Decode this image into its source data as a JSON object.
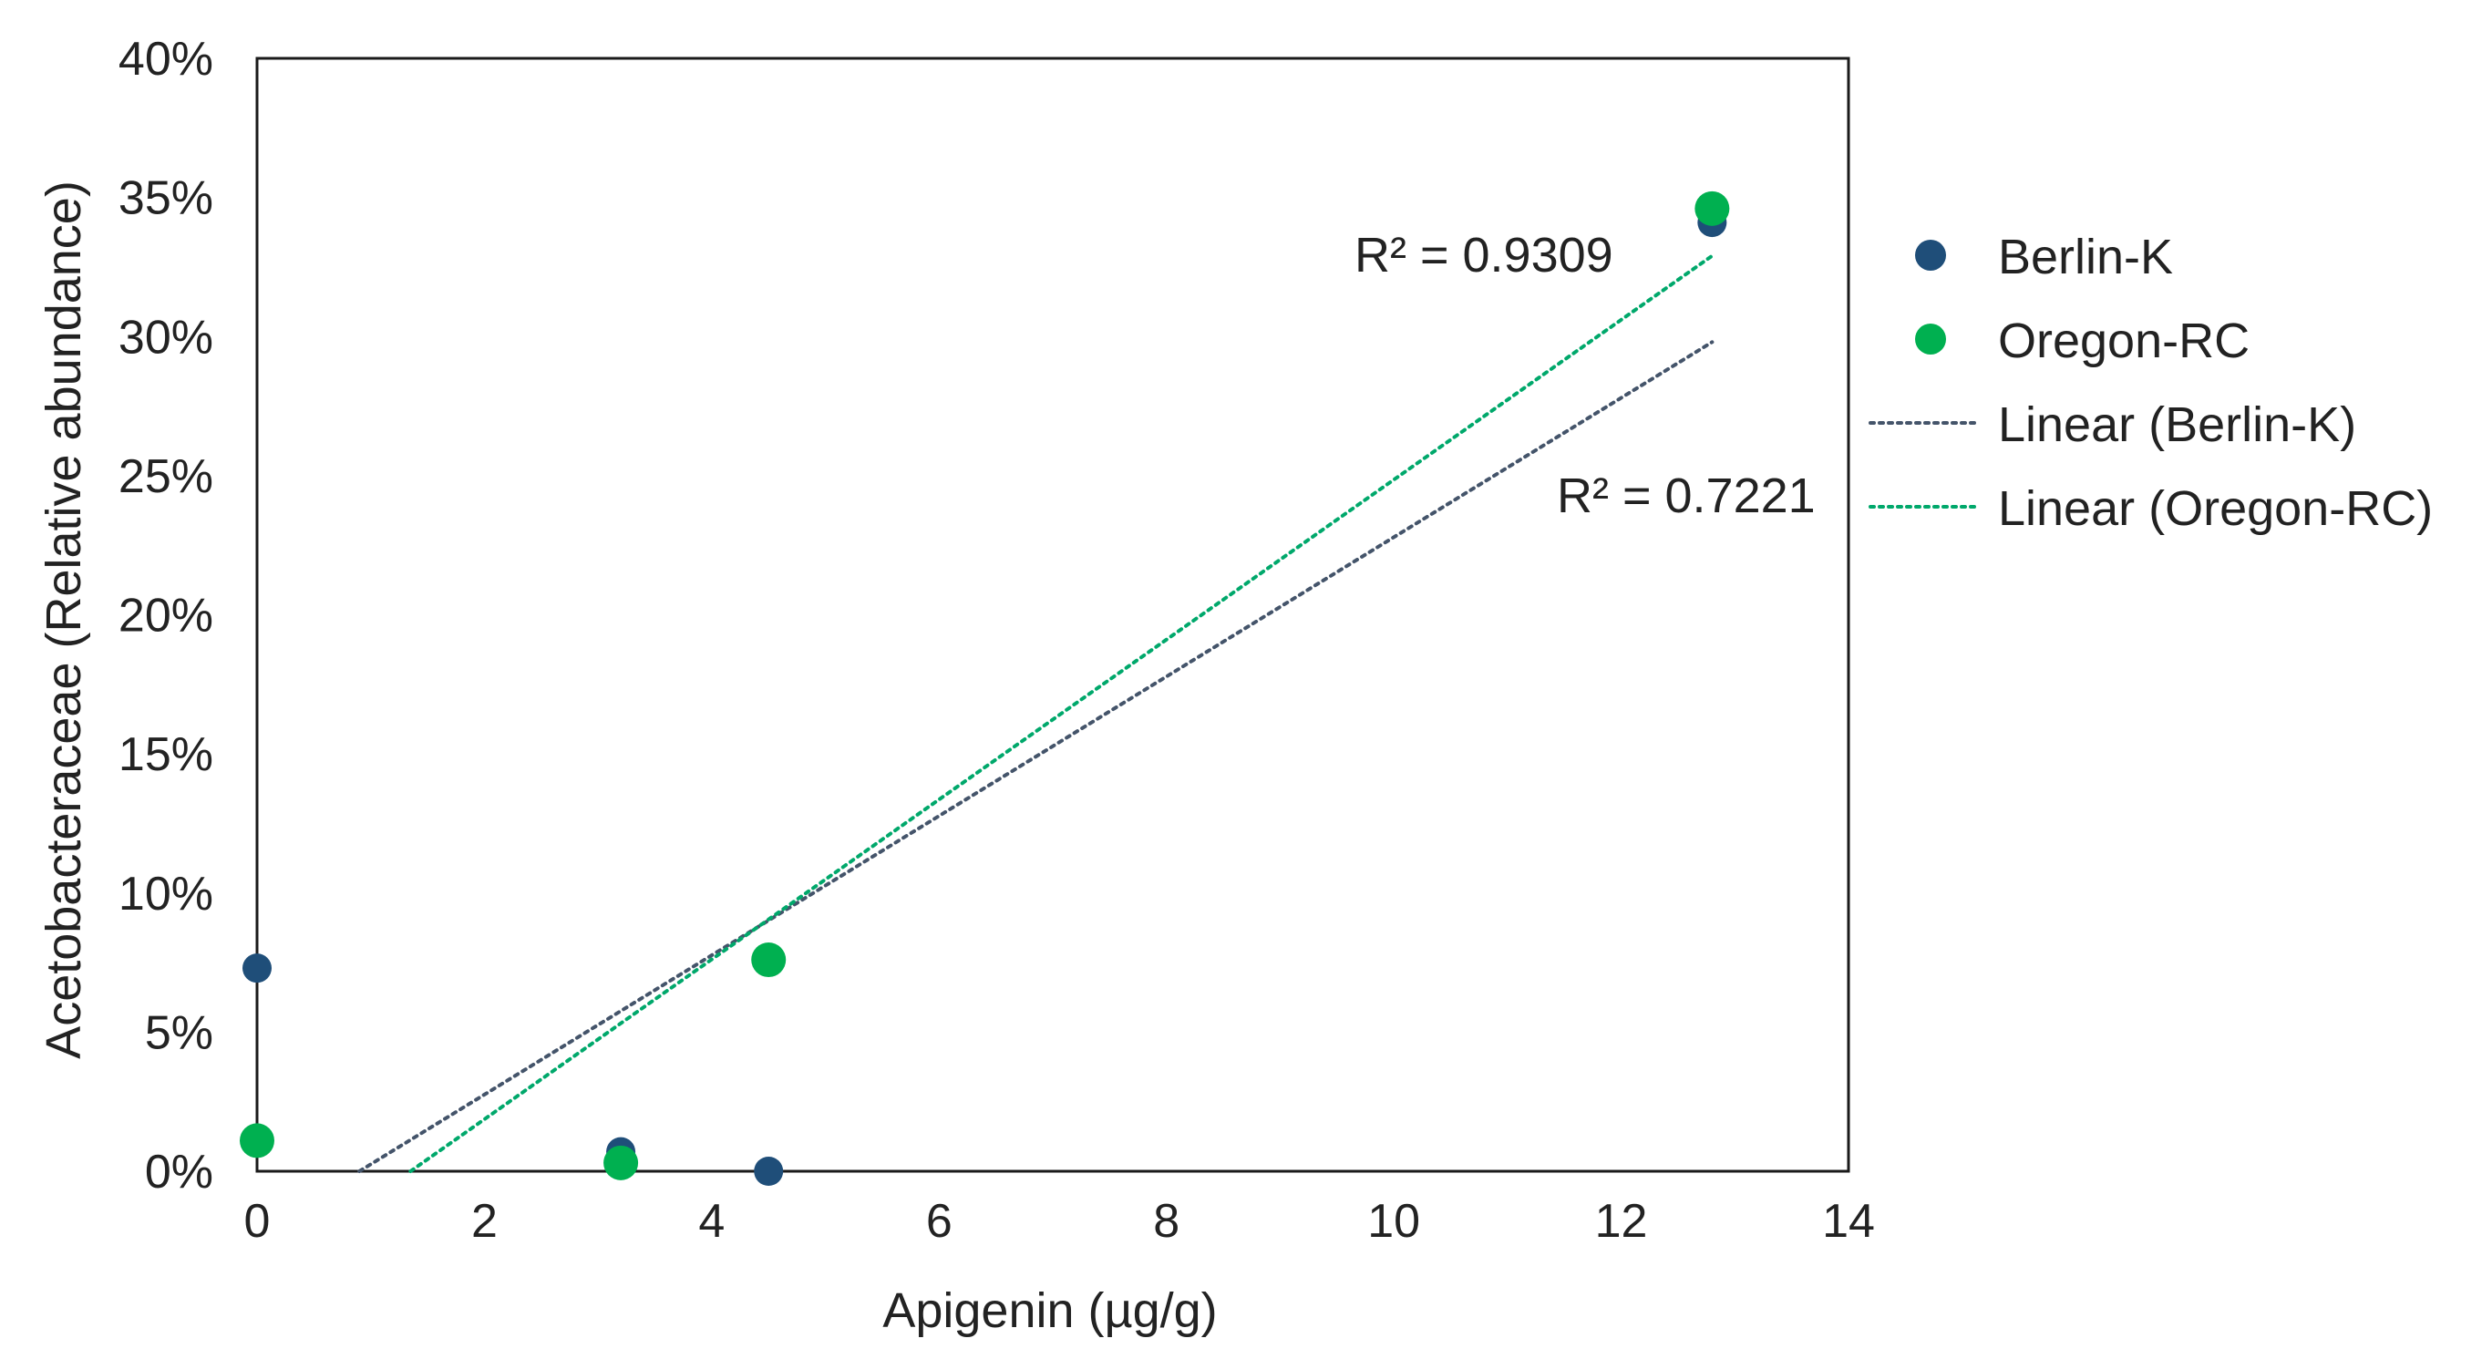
{
  "chart_data": {
    "type": "scatter",
    "xlabel": "Apigenin (µg/g)",
    "ylabel": "Acetobacteraceae (Relative abundance)",
    "xlim": [
      0,
      14
    ],
    "ylim": [
      0,
      0.4
    ],
    "x_ticks": [
      "0",
      "2",
      "4",
      "6",
      "8",
      "10",
      "12",
      "14"
    ],
    "y_ticks": [
      "0%",
      "5%",
      "10%",
      "15%",
      "20%",
      "25%",
      "30%",
      "35%",
      "40%"
    ],
    "grid": false,
    "legend_position": "right",
    "series": [
      {
        "name": "Berlin-K",
        "color": "#1f4e79",
        "points": [
          {
            "x": 0.0,
            "y": 0.073
          },
          {
            "x": 3.2,
            "y": 0.007
          },
          {
            "x": 4.5,
            "y": 0.0
          },
          {
            "x": 12.8,
            "y": 0.341
          }
        ]
      },
      {
        "name": "Oregon-RC",
        "color": "#00b050",
        "points": [
          {
            "x": 0.0,
            "y": 0.011
          },
          {
            "x": 3.2,
            "y": 0.003
          },
          {
            "x": 4.5,
            "y": 0.076
          },
          {
            "x": 12.8,
            "y": 0.346
          }
        ]
      }
    ],
    "trendlines": [
      {
        "name": "Linear (Berlin-K)",
        "color": "#44546a",
        "x0": 0.9,
        "y0": 0.0,
        "x1": 12.8,
        "y1": 0.298,
        "r2_label": "R² = 0.7221"
      },
      {
        "name": "Linear (Oregon-RC)",
        "color": "#00a86b",
        "x0": 1.35,
        "y0": 0.0,
        "x1": 12.8,
        "y1": 0.329,
        "r2_label": "R² = 0.9309"
      }
    ],
    "legend": [
      "Berlin-K",
      "Oregon-RC",
      "Linear (Berlin-K)",
      "Linear (Oregon-RC)"
    ]
  }
}
